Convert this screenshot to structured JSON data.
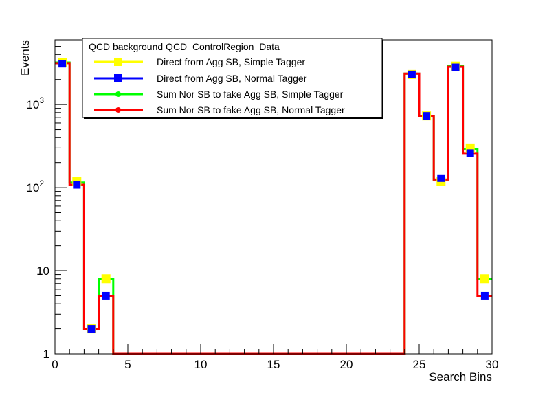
{
  "chart_data": {
    "type": "line",
    "title": "",
    "xlabel": "Search Bins",
    "ylabel": "Events",
    "xlim": [
      0,
      30
    ],
    "ylim": [
      1,
      6000
    ],
    "y_scale": "log",
    "grid": false,
    "legend_position": "top-left",
    "x_ticks": [
      0,
      5,
      10,
      15,
      20,
      25,
      30
    ],
    "x_tick_labels": [
      "0",
      "5",
      "10",
      "15",
      "20",
      "25",
      "30"
    ],
    "y_ticks": [
      1,
      10,
      100,
      1000
    ],
    "y_tick_labels": [
      "1",
      "10",
      "10^2",
      "10^3"
    ],
    "legend_header": "QCD background QCD_ControlRegion_Data",
    "bins": [
      0,
      1,
      2,
      3,
      4,
      5,
      6,
      7,
      8,
      9,
      10,
      11,
      12,
      13,
      14,
      15,
      16,
      17,
      18,
      19,
      20,
      21,
      22,
      23,
      24,
      25,
      26,
      27,
      28,
      29
    ],
    "series": [
      {
        "name": "Direct from Agg SB, Simple Tagger",
        "color": "#ffff00",
        "style": "marker-square",
        "values": [
          3200,
          120,
          2,
          8,
          1,
          1,
          1,
          1,
          1,
          1,
          1,
          1,
          1,
          1,
          1,
          1,
          1,
          1,
          1,
          1,
          1,
          1,
          1,
          1,
          2300,
          730,
          120,
          2900,
          300,
          8
        ]
      },
      {
        "name": "Direct from Agg SB, Normal Tagger",
        "color": "#0000ff",
        "style": "marker-square",
        "values": [
          3100,
          108,
          2,
          5,
          1,
          1,
          1,
          1,
          1,
          1,
          1,
          1,
          1,
          1,
          1,
          1,
          1,
          1,
          1,
          1,
          1,
          1,
          1,
          1,
          2300,
          730,
          130,
          2800,
          260,
          5
        ]
      },
      {
        "name": "Sum Nor SB to fake Agg SB, Simple Tagger",
        "color": "#00ff00",
        "style": "step",
        "values": [
          3200,
          115,
          2,
          8,
          1,
          1,
          1,
          1,
          1,
          1,
          1,
          1,
          1,
          1,
          1,
          1,
          1,
          1,
          1,
          1,
          1,
          1,
          1,
          1,
          2350,
          720,
          125,
          2900,
          290,
          8
        ]
      },
      {
        "name": "Sum Nor SB to fake Agg SB, Normal Tagger",
        "color": "#ff0000",
        "style": "step",
        "values": [
          3150,
          108,
          2,
          5,
          1,
          1,
          1,
          1,
          1,
          1,
          1,
          1,
          1,
          1,
          1,
          1,
          1,
          1,
          1,
          1,
          1,
          1,
          1,
          1,
          2350,
          720,
          125,
          2850,
          260,
          5
        ]
      }
    ]
  }
}
